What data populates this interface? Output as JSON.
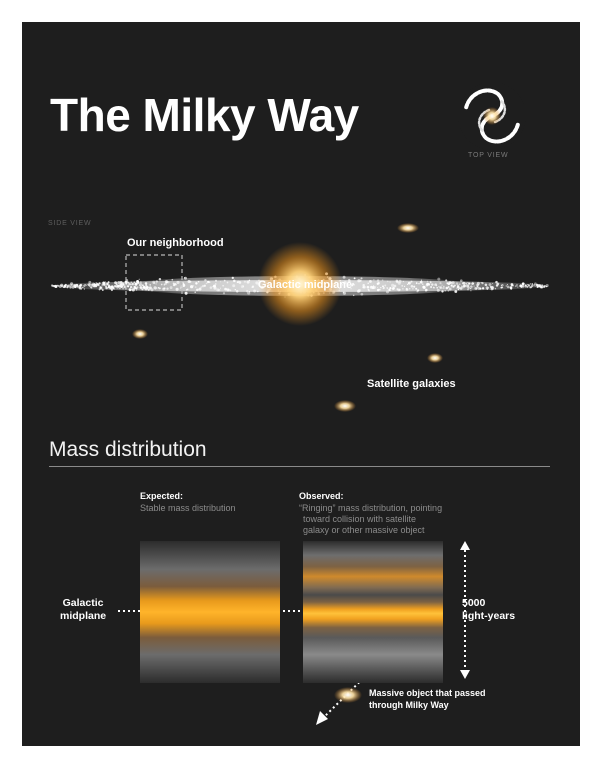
{
  "title": "The Milky Way",
  "top_view_label": "TOP VIEW",
  "side_view_label": "SIDE VIEW",
  "side_view": {
    "neighborhood_label": "Our neighborhood",
    "midplane_label": "Galactic midplane",
    "satellites_label": "Satellite galaxies"
  },
  "mass_distribution": {
    "heading": "Mass distribution",
    "expected_title": "Expected:",
    "expected_desc": "Stable mass distribution",
    "observed_title": "Observed:",
    "observed_desc_lines": [
      "“Ringing” mass distribution, pointing",
      "toward collision with satellite",
      "galaxy or other massive object"
    ],
    "midplane_label_lines": [
      "Galactic",
      "midplane"
    ],
    "scale_label_lines": [
      "5000",
      "light-years"
    ],
    "massive_object_label_lines": [
      "Massive object that passed",
      "through Milky Way"
    ]
  },
  "colors": {
    "background": "#1e1e1e",
    "text": "#ffffff",
    "muted_text": "#8c8c8c",
    "glow": "#ffb42a"
  }
}
